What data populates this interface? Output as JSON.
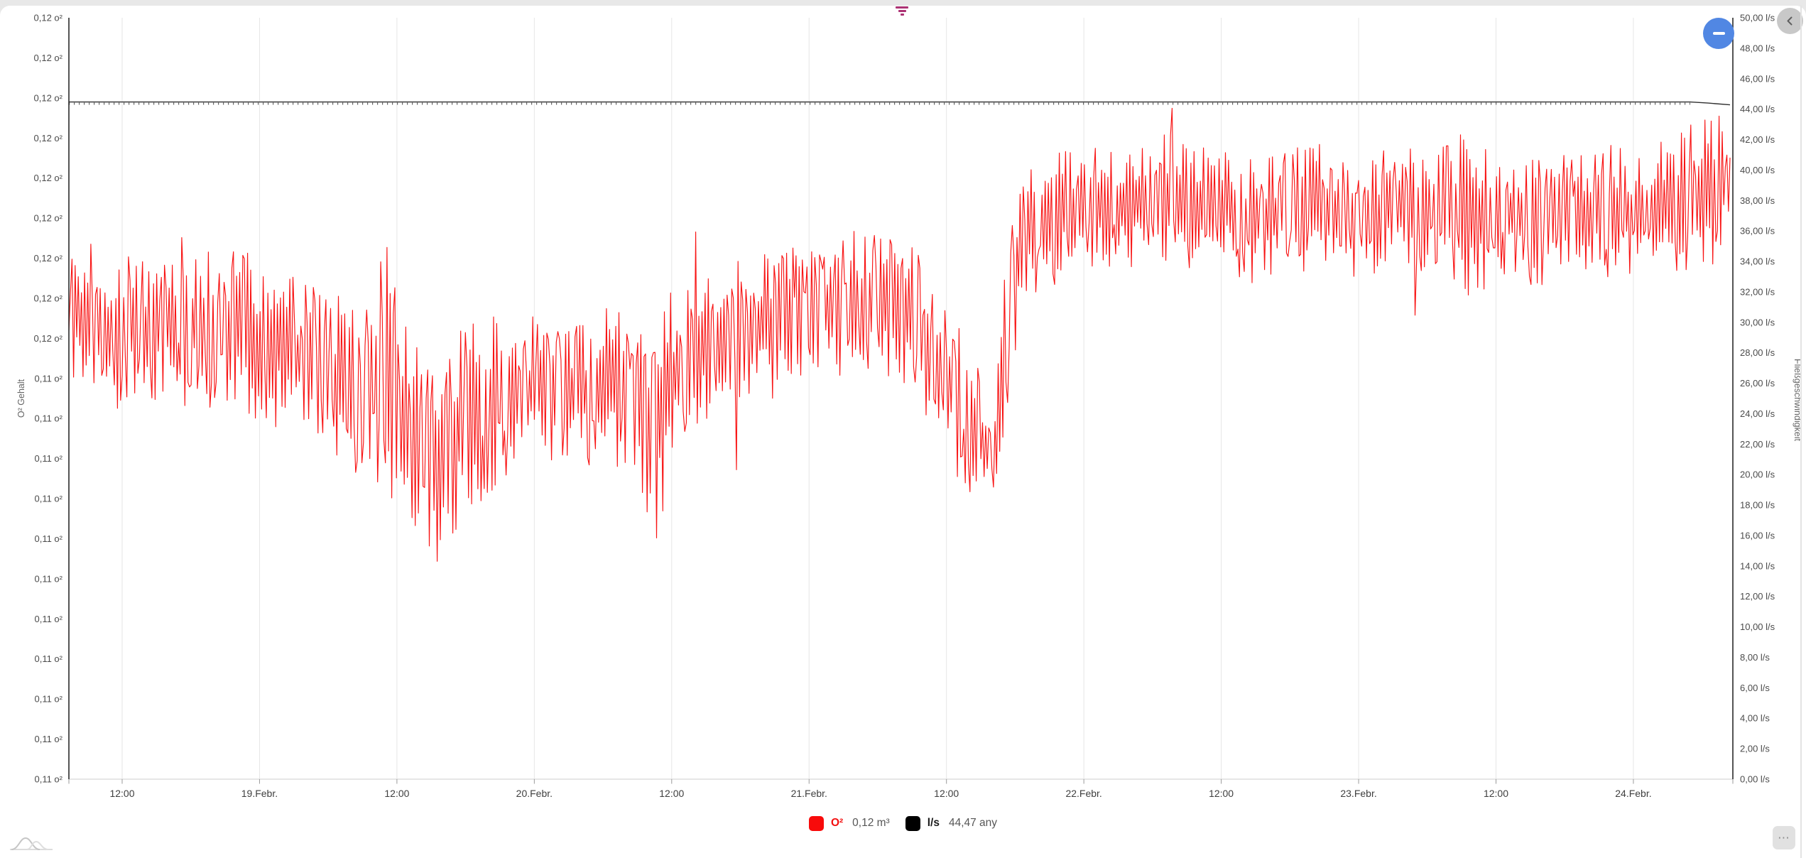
{
  "toolbar": {
    "filter_color": "#ac3274",
    "zoom_out_minus": "",
    "more_label": "⋯"
  },
  "chart": {
    "legend": [
      {
        "name": "O²",
        "value": "0,12 m³",
        "swatch": "#f80b0b",
        "label_color": "#f30f0f"
      },
      {
        "name": "l/s",
        "value": "44,47 any",
        "swatch": "#000000",
        "label_color": "#1a1a1a"
      }
    ]
  },
  "chart_data": {
    "type": "line",
    "grid": "vertical-only",
    "legend_position": "bottom-center",
    "x_axis": {
      "start": "18.Febr. ~06:00",
      "end": "24.Febr. ~18:00",
      "tick_labels": [
        "12:00",
        "19.Febr.",
        "12:00",
        "20.Febr.",
        "12:00",
        "21.Febr.",
        "12:00",
        "22.Febr.",
        "12:00",
        "23.Febr.",
        "12:00",
        "24.Febr."
      ]
    },
    "y_left": {
      "title": "O² Gehalt",
      "unit": "o²",
      "top": 0.1199,
      "bottom": 0.1066,
      "tick_step": 0.0007,
      "tick_labels": [
        "0,12 o²",
        "0,12 o²",
        "0,12 o²",
        "0,12 o²",
        "0,12 o²",
        "0,12 o²",
        "0,12 o²",
        "0,12 o²",
        "0,12 o²",
        "0,11 o²",
        "0,11 o²",
        "0,11 o²",
        "0,11 o²",
        "0,11 o²",
        "0,11 o²",
        "0,11 o²",
        "0,11 o²",
        "0,11 o²",
        "0,11 o²",
        "0,11 o²"
      ]
    },
    "y_right": {
      "title": "Fließgeschwindigkeit",
      "unit": "l/s",
      "top": 50,
      "bottom": 0,
      "tick_step": 2,
      "tick_labels": [
        "50,00 l/s",
        "48,00 l/s",
        "46,00 l/s",
        "44,00 l/s",
        "42,00 l/s",
        "40,00 l/s",
        "38,00 l/s",
        "36,00 l/s",
        "34,00 l/s",
        "32,00 l/s",
        "30,00 l/s",
        "28,00 l/s",
        "26,00 l/s",
        "24,00 l/s",
        "22,00 l/s",
        "20,00 l/s",
        "18,00 l/s",
        "16,00 l/s",
        "14,00 l/s",
        "12,00 l/s",
        "10,00 l/s",
        "8,00 l/s",
        "6,00 l/s",
        "4,00 l/s",
        "2,00 l/s",
        "0,00 l/s"
      ]
    },
    "series": [
      {
        "name": "O²",
        "color": "#f81414",
        "style": "noisy-line",
        "current_value_label": "0,12 m³",
        "envelope_anchors": [
          [
            0.0,
            0.11475,
            0.00118
          ],
          [
            0.032,
            0.11438,
            0.00136
          ],
          [
            0.065,
            0.11463,
            0.00149
          ],
          [
            0.114,
            0.11432,
            0.00143
          ],
          [
            0.151,
            0.11376,
            0.00143
          ],
          [
            0.18,
            0.11332,
            0.00161
          ],
          [
            0.191,
            0.11376,
            0.00223
          ],
          [
            0.204,
            0.11239,
            0.00199
          ],
          [
            0.219,
            0.11215,
            0.00211
          ],
          [
            0.236,
            0.11277,
            0.00174
          ],
          [
            0.257,
            0.1132,
            0.00149
          ],
          [
            0.28,
            0.11339,
            0.00136
          ],
          [
            0.3,
            0.11326,
            0.00124
          ],
          [
            0.321,
            0.11345,
            0.00136
          ],
          [
            0.343,
            0.11332,
            0.00161
          ],
          [
            0.352,
            0.11264,
            0.00248
          ],
          [
            0.358,
            0.11326,
            0.00161
          ],
          [
            0.368,
            0.11376,
            0.00136
          ],
          [
            0.385,
            0.11413,
            0.00124
          ],
          [
            0.407,
            0.11438,
            0.00136
          ],
          [
            0.445,
            0.11475,
            0.0013
          ],
          [
            0.471,
            0.11494,
            0.00124
          ],
          [
            0.496,
            0.11488,
            0.00136
          ],
          [
            0.513,
            0.11438,
            0.00149
          ],
          [
            0.535,
            0.11326,
            0.00149
          ],
          [
            0.552,
            0.11245,
            0.00105
          ],
          [
            0.557,
            0.11227,
            0.00087
          ],
          [
            0.561,
            0.11326,
            0.00174
          ],
          [
            0.567,
            0.11488,
            0.00161
          ],
          [
            0.573,
            0.11599,
            0.00124
          ],
          [
            0.582,
            0.11624,
            0.00118
          ],
          [
            0.607,
            0.11655,
            0.00112
          ],
          [
            0.646,
            0.11674,
            0.00118
          ],
          [
            0.693,
            0.11661,
            0.00112
          ],
          [
            0.714,
            0.11636,
            0.00118
          ],
          [
            0.748,
            0.11661,
            0.00112
          ],
          [
            0.776,
            0.11648,
            0.00118
          ],
          [
            0.808,
            0.11655,
            0.00112
          ],
          [
            0.836,
            0.11661,
            0.00136
          ],
          [
            0.844,
            0.11624,
            0.00136
          ],
          [
            0.859,
            0.11648,
            0.00112
          ],
          [
            0.889,
            0.11636,
            0.00118
          ],
          [
            0.915,
            0.11655,
            0.00118
          ],
          [
            0.94,
            0.11648,
            0.00118
          ],
          [
            0.966,
            0.11661,
            0.00124
          ],
          [
            0.983,
            0.11686,
            0.00136
          ],
          [
            1.0,
            0.11698,
            0.00124
          ]
        ],
        "noise": {
          "seed": 77,
          "points": 1060,
          "alternate_prob": 0.8,
          "spike_prob": 0.012,
          "min_magnitude": 0.25,
          "exponent": 1.25,
          "clamp": [
            0.1097,
            0.11832
          ]
        }
      },
      {
        "name": "l/s",
        "color": "#2f2f2f",
        "style": "flat-line-with-ticks",
        "value": 44.47,
        "current_value_label": "44,47 any"
      }
    ]
  }
}
